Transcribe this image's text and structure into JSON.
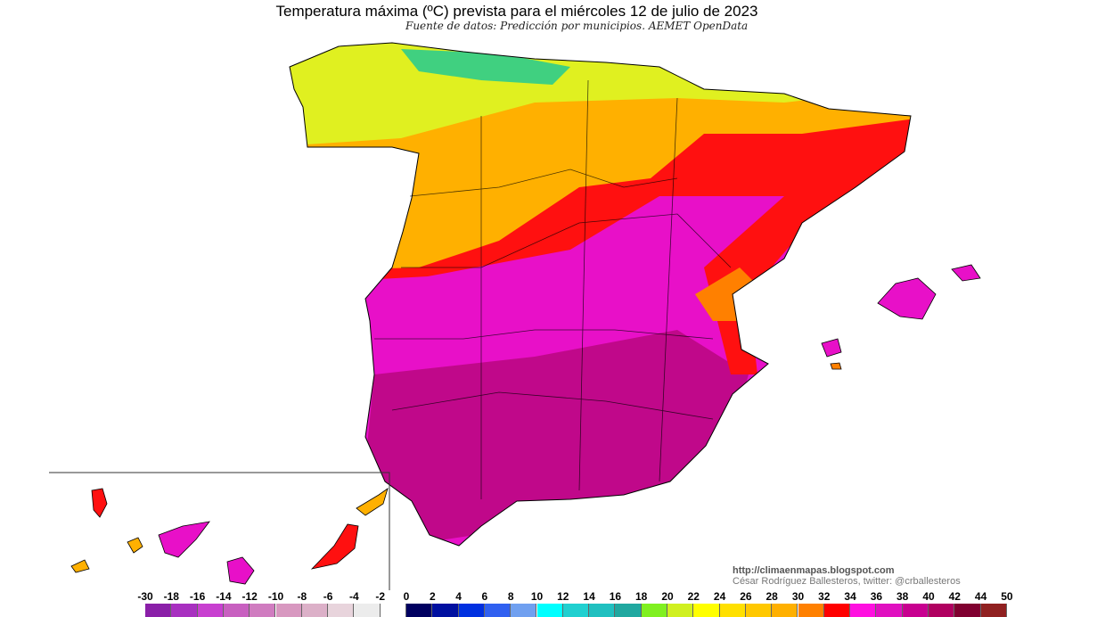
{
  "title": "Temperatura máxima (ºC) prevista para el miércoles 12 de julio de 2023",
  "subtitle": "Fuente de datos: Predicción por municipios. AEMET OpenData",
  "credits": {
    "url": "http://climaenmapas.blogspot.com",
    "author": "César Rodríguez Ballesteros, twitter: @crballesteros"
  },
  "legend": {
    "labels": [
      "-30",
      "-18",
      "-16",
      "-14",
      "-12",
      "-10",
      "-8",
      "-6",
      "-4",
      "-2",
      "0",
      "2",
      "4",
      "6",
      "8",
      "10",
      "12",
      "14",
      "16",
      "18",
      "20",
      "22",
      "24",
      "26",
      "28",
      "30",
      "32",
      "34",
      "36",
      "38",
      "40",
      "42",
      "44",
      "50"
    ],
    "colors": [
      "#8a1fa8",
      "#a830c0",
      "#c840d0",
      "#c860c0",
      "#d07cc0",
      "#d898c0",
      "#dcb0c8",
      "#e8d4dc",
      "#ececec",
      "#ffffff",
      "#000060",
      "#0010a0",
      "#0030e0",
      "#3060f0",
      "#70a0f0",
      "#00ffff",
      "#20d0d0",
      "#20c0c0",
      "#20a8a0",
      "#80f020",
      "#d0f020",
      "#ffff00",
      "#ffe000",
      "#ffc800",
      "#ffb000",
      "#ff8000",
      "#ff0000",
      "#ff10e0",
      "#e010c0",
      "#c80090",
      "#b00060",
      "#800030",
      "#902020"
    ]
  },
  "map_colors": {
    "north": "#e0f020",
    "coast_green": "#40d080",
    "northern_plateau": "#ffb000",
    "hot_band": "#ff1010",
    "interior": "#e810c8",
    "south": "#c0088a",
    "borders": "#000000"
  }
}
